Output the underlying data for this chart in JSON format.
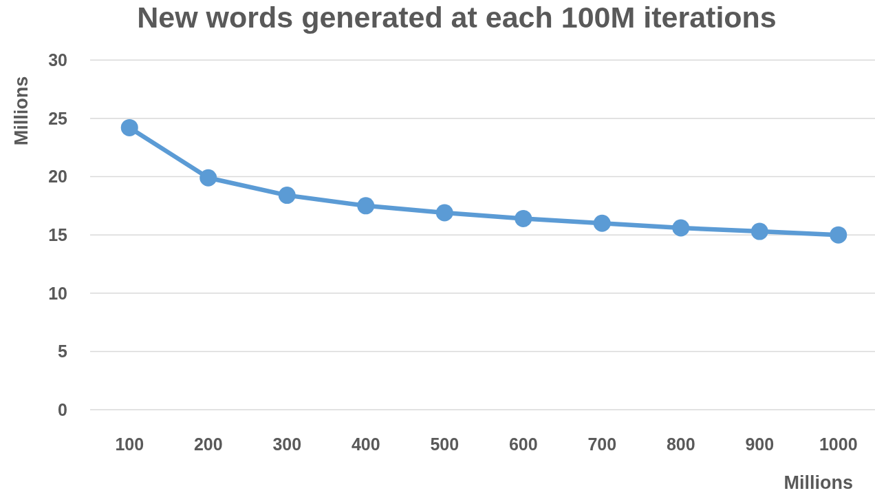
{
  "chart_data": {
    "type": "line",
    "title": "New words generated at each 100M iterations",
    "xlabel": "Millions",
    "ylabel": "Millions",
    "categories": [
      "100",
      "200",
      "300",
      "400",
      "500",
      "600",
      "700",
      "800",
      "900",
      "1000"
    ],
    "series": [
      {
        "color": "#5b9bd5",
        "values": [
          24.2,
          19.9,
          18.4,
          17.5,
          16.9,
          16.4,
          16.0,
          15.6,
          15.3,
          15.0
        ]
      }
    ],
    "ylim": [
      0,
      30
    ],
    "yticks": [
      0,
      5,
      10,
      15,
      20,
      25,
      30
    ],
    "grid": "y",
    "marker": "circle",
    "line_style": "solid"
  }
}
